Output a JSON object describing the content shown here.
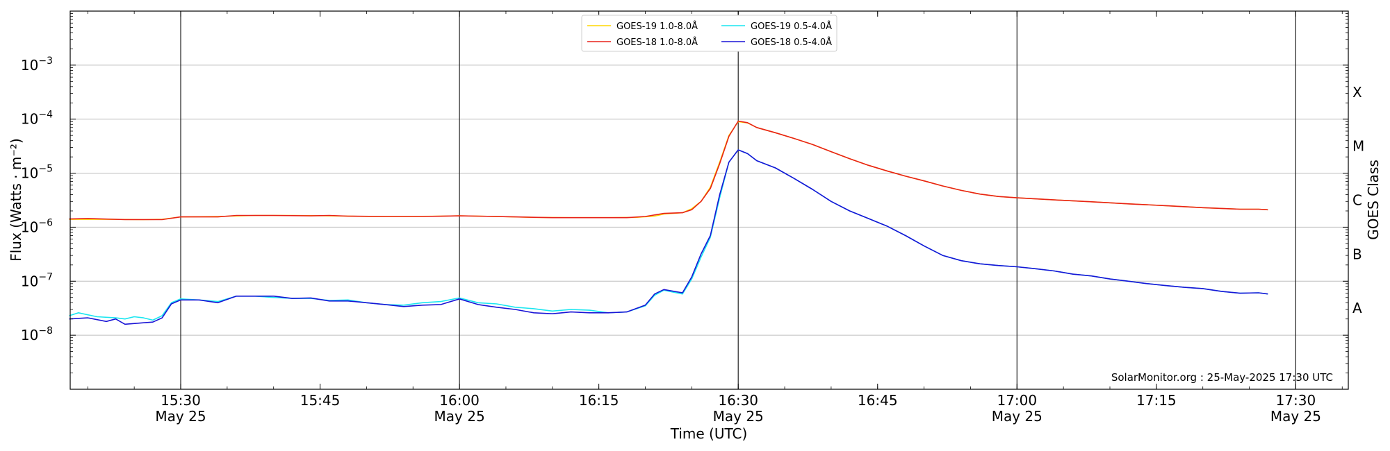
{
  "chart_data": {
    "type": "line",
    "xlabel": "Time (UTC)",
    "ylabel": "Flux (Watts · m⁻²)",
    "ylabel_right": "GOES Class",
    "yscale": "log",
    "xlim": [
      "15:18",
      "17:35"
    ],
    "ylim": [
      1e-09,
      0.01
    ],
    "grid": "horizontal at decades, vertical lines at 30-minute marks",
    "legend_position": "top-center",
    "annotation": "SolarMonitor.org : 25-May-2025 17:30 UTC",
    "x_ticks": [
      {
        "time": "15:30",
        "label": "15:30",
        "date": "May 25"
      },
      {
        "time": "15:45",
        "label": "15:45",
        "date": ""
      },
      {
        "time": "16:00",
        "label": "16:00",
        "date": "May 25"
      },
      {
        "time": "16:15",
        "label": "16:15",
        "date": ""
      },
      {
        "time": "16:30",
        "label": "16:30",
        "date": "May 25"
      },
      {
        "time": "16:45",
        "label": "16:45",
        "date": ""
      },
      {
        "time": "17:00",
        "label": "17:00",
        "date": "May 25"
      },
      {
        "time": "17:15",
        "label": "17:15",
        "date": ""
      },
      {
        "time": "17:30",
        "label": "17:30",
        "date": "May 25"
      }
    ],
    "vertical_lines": [
      "15:30",
      "16:00",
      "16:30",
      "17:00",
      "17:30"
    ],
    "y_ticks": [
      {
        "value": 1e-08,
        "mantissa": "10",
        "exp": "−8"
      },
      {
        "value": 1e-07,
        "mantissa": "10",
        "exp": "−7"
      },
      {
        "value": 1e-06,
        "mantissa": "10",
        "exp": "−6"
      },
      {
        "value": 1e-05,
        "mantissa": "10",
        "exp": "−5"
      },
      {
        "value": 0.0001,
        "mantissa": "10",
        "exp": "−4"
      },
      {
        "value": 0.001,
        "mantissa": "10",
        "exp": "−3"
      }
    ],
    "goes_classes": [
      {
        "label": "A",
        "value": 3.16e-08
      },
      {
        "label": "B",
        "value": 3.16e-07
      },
      {
        "label": "C",
        "value": 3.16e-06
      },
      {
        "label": "M",
        "value": 3.16e-05
      },
      {
        "label": "X",
        "value": 0.000316
      }
    ],
    "series": [
      {
        "name": "GOES-19 1.0-8.0Å",
        "color": "#ffd700",
        "points": [
          [
            "15:18",
            1.4e-06
          ],
          [
            "15:22",
            1.4e-06
          ],
          [
            "15:26",
            1.38e-06
          ],
          [
            "15:28",
            1.4e-06
          ],
          [
            "15:30",
            1.55e-06
          ],
          [
            "15:34",
            1.58e-06
          ],
          [
            "15:38",
            1.65e-06
          ],
          [
            "15:42",
            1.65e-06
          ],
          [
            "15:46",
            1.62e-06
          ],
          [
            "15:50",
            1.58e-06
          ],
          [
            "15:54",
            1.58e-06
          ],
          [
            "15:58",
            1.6e-06
          ],
          [
            "16:00",
            1.62e-06
          ],
          [
            "16:04",
            1.58e-06
          ],
          [
            "16:08",
            1.52e-06
          ],
          [
            "16:12",
            1.5e-06
          ],
          [
            "16:16",
            1.5e-06
          ],
          [
            "16:19",
            1.52e-06
          ],
          [
            "16:21",
            1.6e-06
          ],
          [
            "16:22",
            1.75e-06
          ],
          [
            "16:24",
            1.85e-06
          ],
          [
            "16:25",
            2.2e-06
          ],
          [
            "16:26",
            3e-06
          ],
          [
            "16:27",
            5.5e-06
          ],
          [
            "16:28",
            1.6e-05
          ],
          [
            "16:29",
            5e-05
          ],
          [
            "16:30",
            9e-05
          ],
          [
            "16:31",
            8.5e-05
          ],
          [
            "16:32",
            7e-05
          ],
          [
            "16:34",
            5.6e-05
          ],
          [
            "16:36",
            4.4e-05
          ],
          [
            "16:38",
            3.4e-05
          ],
          [
            "16:40",
            2.5e-05
          ],
          [
            "16:42",
            1.85e-05
          ],
          [
            "16:44",
            1.4e-05
          ],
          [
            "16:46",
            1.1e-05
          ],
          [
            "16:48",
            8.8e-06
          ],
          [
            "16:50",
            7.2e-06
          ],
          [
            "16:52",
            5.8e-06
          ],
          [
            "16:54",
            4.8e-06
          ],
          [
            "16:56",
            4.1e-06
          ],
          [
            "16:58",
            3.7e-06
          ],
          [
            "17:00",
            3.5e-06
          ],
          [
            "17:04",
            3.2e-06
          ],
          [
            "17:08",
            2.95e-06
          ],
          [
            "17:12",
            2.7e-06
          ],
          [
            "17:16",
            2.5e-06
          ],
          [
            "17:20",
            2.3e-06
          ],
          [
            "17:24",
            2.15e-06
          ],
          [
            "17:26",
            2.15e-06
          ],
          [
            "17:27",
            2.1e-06
          ]
        ]
      },
      {
        "name": "GOES-18 1.0-8.0Å",
        "color": "#e8221a",
        "points": [
          [
            "15:18",
            1.42e-06
          ],
          [
            "15:20",
            1.45e-06
          ],
          [
            "15:24",
            1.38e-06
          ],
          [
            "15:28",
            1.38e-06
          ],
          [
            "15:30",
            1.55e-06
          ],
          [
            "15:34",
            1.55e-06
          ],
          [
            "15:36",
            1.65e-06
          ],
          [
            "15:40",
            1.65e-06
          ],
          [
            "15:44",
            1.62e-06
          ],
          [
            "15:46",
            1.65e-06
          ],
          [
            "15:48",
            1.6e-06
          ],
          [
            "15:52",
            1.58e-06
          ],
          [
            "15:56",
            1.58e-06
          ],
          [
            "16:00",
            1.62e-06
          ],
          [
            "16:02",
            1.6e-06
          ],
          [
            "16:06",
            1.55e-06
          ],
          [
            "16:10",
            1.5e-06
          ],
          [
            "16:14",
            1.5e-06
          ],
          [
            "16:18",
            1.5e-06
          ],
          [
            "16:20",
            1.58e-06
          ],
          [
            "16:22",
            1.8e-06
          ],
          [
            "16:24",
            1.85e-06
          ],
          [
            "16:25",
            2.1e-06
          ],
          [
            "16:26",
            3e-06
          ],
          [
            "16:27",
            5.2e-06
          ],
          [
            "16:28",
            1.5e-05
          ],
          [
            "16:29",
            4.8e-05
          ],
          [
            "16:30",
            9.2e-05
          ],
          [
            "16:31",
            8.6e-05
          ],
          [
            "16:32",
            7e-05
          ],
          [
            "16:34",
            5.6e-05
          ],
          [
            "16:36",
            4.4e-05
          ],
          [
            "16:38",
            3.4e-05
          ],
          [
            "16:40",
            2.5e-05
          ],
          [
            "16:42",
            1.85e-05
          ],
          [
            "16:44",
            1.4e-05
          ],
          [
            "16:46",
            1.1e-05
          ],
          [
            "16:48",
            8.8e-06
          ],
          [
            "16:50",
            7.2e-06
          ],
          [
            "16:52",
            5.8e-06
          ],
          [
            "16:54",
            4.8e-06
          ],
          [
            "16:56",
            4.1e-06
          ],
          [
            "16:58",
            3.7e-06
          ],
          [
            "17:00",
            3.5e-06
          ],
          [
            "17:04",
            3.2e-06
          ],
          [
            "17:08",
            2.95e-06
          ],
          [
            "17:12",
            2.7e-06
          ],
          [
            "17:16",
            2.5e-06
          ],
          [
            "17:20",
            2.3e-06
          ],
          [
            "17:24",
            2.15e-06
          ],
          [
            "17:26",
            2.15e-06
          ],
          [
            "17:27",
            2.1e-06
          ]
        ]
      },
      {
        "name": "GOES-19 0.5-4.0Å",
        "color": "#19e6f0",
        "points": [
          [
            "15:18",
            2.3e-08
          ],
          [
            "15:19",
            2.6e-08
          ],
          [
            "15:21",
            2.2e-08
          ],
          [
            "15:23",
            2.1e-08
          ],
          [
            "15:24",
            2e-08
          ],
          [
            "15:25",
            2.2e-08
          ],
          [
            "15:26",
            2.1e-08
          ],
          [
            "15:27",
            1.9e-08
          ],
          [
            "15:28",
            2.3e-08
          ],
          [
            "15:29",
            4e-08
          ],
          [
            "15:30",
            4.7e-08
          ],
          [
            "15:32",
            4.5e-08
          ],
          [
            "15:34",
            4.2e-08
          ],
          [
            "15:36",
            5.3e-08
          ],
          [
            "15:38",
            5.3e-08
          ],
          [
            "15:40",
            5e-08
          ],
          [
            "15:42",
            4.8e-08
          ],
          [
            "15:44",
            4.8e-08
          ],
          [
            "15:46",
            4.4e-08
          ],
          [
            "15:48",
            4.5e-08
          ],
          [
            "15:50",
            4e-08
          ],
          [
            "15:52",
            3.7e-08
          ],
          [
            "15:54",
            3.6e-08
          ],
          [
            "15:56",
            4e-08
          ],
          [
            "15:58",
            4.2e-08
          ],
          [
            "16:00",
            4.9e-08
          ],
          [
            "16:02",
            4e-08
          ],
          [
            "16:04",
            3.8e-08
          ],
          [
            "16:06",
            3.3e-08
          ],
          [
            "16:08",
            3.1e-08
          ],
          [
            "16:10",
            2.8e-08
          ],
          [
            "16:12",
            3e-08
          ],
          [
            "16:14",
            2.9e-08
          ],
          [
            "16:16",
            2.6e-08
          ],
          [
            "16:18",
            2.7e-08
          ],
          [
            "16:20",
            3.5e-08
          ],
          [
            "16:21",
            5.5e-08
          ],
          [
            "16:22",
            6.8e-08
          ],
          [
            "16:24",
            5.8e-08
          ],
          [
            "16:25",
            1.1e-07
          ],
          [
            "16:26",
            2.8e-07
          ],
          [
            "16:27",
            6.5e-07
          ],
          [
            "16:28",
            3.5e-06
          ],
          [
            "16:29",
            1.6e-05
          ],
          [
            "16:30",
            2.7e-05
          ],
          [
            "16:31",
            2.3e-05
          ],
          [
            "16:32",
            1.7e-05
          ],
          [
            "16:34",
            1.25e-05
          ],
          [
            "16:36",
            8e-06
          ],
          [
            "16:38",
            5e-06
          ],
          [
            "16:40",
            3e-06
          ],
          [
            "16:42",
            2e-06
          ],
          [
            "16:44",
            1.45e-06
          ],
          [
            "16:46",
            1.05e-06
          ],
          [
            "16:48",
            7e-07
          ],
          [
            "16:50",
            4.5e-07
          ],
          [
            "16:52",
            3e-07
          ],
          [
            "16:54",
            2.4e-07
          ],
          [
            "16:56",
            2.1e-07
          ],
          [
            "16:58",
            1.95e-07
          ],
          [
            "17:00",
            1.85e-07
          ],
          [
            "17:02",
            1.7e-07
          ],
          [
            "17:04",
            1.55e-07
          ],
          [
            "17:06",
            1.35e-07
          ],
          [
            "17:08",
            1.25e-07
          ],
          [
            "17:10",
            1.1e-07
          ],
          [
            "17:12",
            1e-07
          ],
          [
            "17:14",
            9e-08
          ],
          [
            "17:16",
            8.3e-08
          ],
          [
            "17:18",
            7.7e-08
          ],
          [
            "17:20",
            7.3e-08
          ],
          [
            "17:22",
            6.5e-08
          ],
          [
            "17:24",
            6e-08
          ],
          [
            "17:26",
            6.1e-08
          ],
          [
            "17:27",
            5.8e-08
          ]
        ]
      },
      {
        "name": "GOES-18 0.5-4.0Å",
        "color": "#1a14d6",
        "points": [
          [
            "15:18",
            2e-08
          ],
          [
            "15:20",
            2.1e-08
          ],
          [
            "15:22",
            1.8e-08
          ],
          [
            "15:23",
            2e-08
          ],
          [
            "15:24",
            1.6e-08
          ],
          [
            "15:26",
            1.7e-08
          ],
          [
            "15:27",
            1.75e-08
          ],
          [
            "15:28",
            2.1e-08
          ],
          [
            "15:29",
            3.8e-08
          ],
          [
            "15:30",
            4.5e-08
          ],
          [
            "15:32",
            4.5e-08
          ],
          [
            "15:34",
            4e-08
          ],
          [
            "15:36",
            5.3e-08
          ],
          [
            "15:38",
            5.3e-08
          ],
          [
            "15:40",
            5.3e-08
          ],
          [
            "15:42",
            4.8e-08
          ],
          [
            "15:44",
            4.9e-08
          ],
          [
            "15:46",
            4.3e-08
          ],
          [
            "15:48",
            4.3e-08
          ],
          [
            "15:50",
            4e-08
          ],
          [
            "15:52",
            3.7e-08
          ],
          [
            "15:54",
            3.4e-08
          ],
          [
            "15:56",
            3.6e-08
          ],
          [
            "15:58",
            3.7e-08
          ],
          [
            "16:00",
            4.7e-08
          ],
          [
            "16:02",
            3.7e-08
          ],
          [
            "16:04",
            3.3e-08
          ],
          [
            "16:06",
            3e-08
          ],
          [
            "16:08",
            2.6e-08
          ],
          [
            "16:10",
            2.5e-08
          ],
          [
            "16:12",
            2.7e-08
          ],
          [
            "16:14",
            2.6e-08
          ],
          [
            "16:16",
            2.6e-08
          ],
          [
            "16:18",
            2.7e-08
          ],
          [
            "16:20",
            3.6e-08
          ],
          [
            "16:21",
            5.8e-08
          ],
          [
            "16:22",
            7e-08
          ],
          [
            "16:24",
            6.1e-08
          ],
          [
            "16:25",
            1.2e-07
          ],
          [
            "16:26",
            3.2e-07
          ],
          [
            "16:27",
            7e-07
          ],
          [
            "16:28",
            4e-06
          ],
          [
            "16:29",
            1.6e-05
          ],
          [
            "16:30",
            2.7e-05
          ],
          [
            "16:31",
            2.3e-05
          ],
          [
            "16:32",
            1.7e-05
          ],
          [
            "16:34",
            1.25e-05
          ],
          [
            "16:36",
            8e-06
          ],
          [
            "16:38",
            5e-06
          ],
          [
            "16:40",
            3e-06
          ],
          [
            "16:42",
            2e-06
          ],
          [
            "16:44",
            1.45e-06
          ],
          [
            "16:46",
            1.05e-06
          ],
          [
            "16:48",
            7e-07
          ],
          [
            "16:50",
            4.5e-07
          ],
          [
            "16:52",
            3e-07
          ],
          [
            "16:54",
            2.4e-07
          ],
          [
            "16:56",
            2.1e-07
          ],
          [
            "16:58",
            1.95e-07
          ],
          [
            "17:00",
            1.85e-07
          ],
          [
            "17:02",
            1.7e-07
          ],
          [
            "17:04",
            1.55e-07
          ],
          [
            "17:06",
            1.35e-07
          ],
          [
            "17:08",
            1.25e-07
          ],
          [
            "17:10",
            1.1e-07
          ],
          [
            "17:12",
            1e-07
          ],
          [
            "17:14",
            9e-08
          ],
          [
            "17:16",
            8.3e-08
          ],
          [
            "17:18",
            7.7e-08
          ],
          [
            "17:20",
            7.3e-08
          ],
          [
            "17:22",
            6.5e-08
          ],
          [
            "17:24",
            6e-08
          ],
          [
            "17:26",
            6.1e-08
          ],
          [
            "17:27",
            5.8e-08
          ]
        ]
      }
    ]
  }
}
